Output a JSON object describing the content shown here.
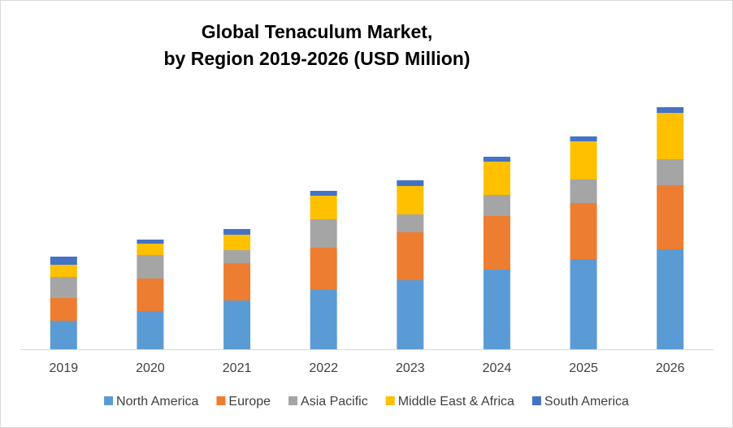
{
  "chart_data": {
    "type": "stacked_bar",
    "title": [
      "Global Tenaculum Market,",
      "by Region 2019-2026 (USD Million)"
    ],
    "categories": [
      "2019",
      "2020",
      "2021",
      "2022",
      "2023",
      "2024",
      "2025",
      "2026"
    ],
    "series": [
      {
        "name": "North America",
        "color": "#5b9bd5",
        "values": [
          35,
          47,
          60,
          73,
          85,
          98,
          111,
          123
        ]
      },
      {
        "name": "Europe",
        "color": "#ed7d31",
        "values": [
          28,
          40,
          46,
          52,
          59,
          66,
          69,
          79
        ]
      },
      {
        "name": "Asia Pacific",
        "color": "#a5a5a5",
        "values": [
          26,
          29,
          16,
          35,
          22,
          26,
          29,
          32
        ]
      },
      {
        "name": "Middle East & Africa",
        "color": "#ffc000",
        "values": [
          15,
          14,
          19,
          29,
          35,
          41,
          47,
          57
        ]
      },
      {
        "name": "South America",
        "color": "#4472c4",
        "values": [
          10,
          5,
          7,
          6,
          7,
          6,
          6,
          7
        ]
      }
    ],
    "ylim": [
      0,
      310
    ]
  }
}
